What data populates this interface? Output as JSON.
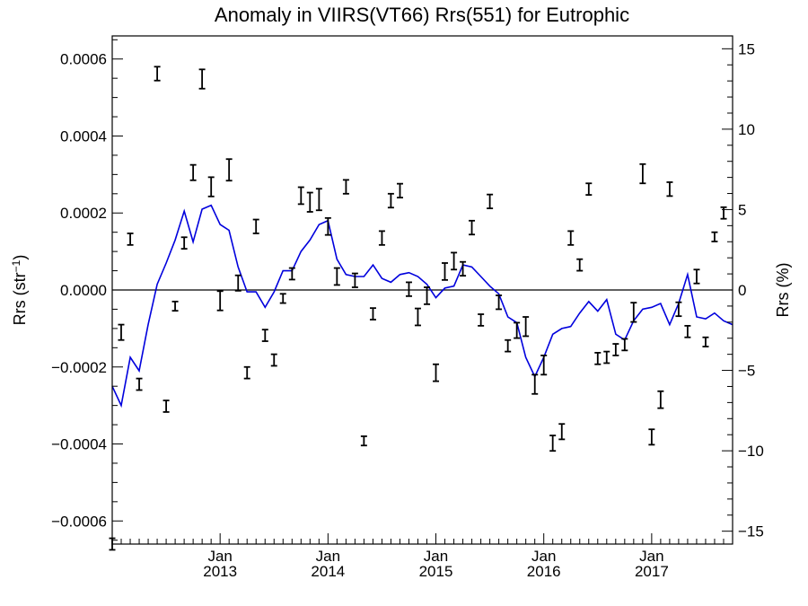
{
  "chart_data": {
    "type": "line",
    "title": "Anomaly in VIIRS(VT66) Rrs(551) for Eutrophic",
    "ylabel": "Rrs (str",
    "ylabel_sup": "−1",
    "ylabel_close": ")",
    "y2label": "Rrs (%)",
    "ylim": [
      -0.00066,
      0.00066
    ],
    "y2lim": [
      -15.8,
      15.8
    ],
    "xlim": [
      2012.0,
      2017.75
    ],
    "grid": false,
    "zero_line": true,
    "line_color": "#0000dd",
    "marker_color": "#000000",
    "y_ticks": [
      {
        "v": -0.0006,
        "label": "−0.0006"
      },
      {
        "v": -0.0004,
        "label": "−0.0004"
      },
      {
        "v": -0.0002,
        "label": "−0.0002"
      },
      {
        "v": 0.0,
        "label": "0.0000"
      },
      {
        "v": 0.0002,
        "label": "0.0002"
      },
      {
        "v": 0.0004,
        "label": "0.0004"
      },
      {
        "v": 0.0006,
        "label": "0.0006"
      }
    ],
    "y2_ticks": [
      {
        "v": -15,
        "label": "−15"
      },
      {
        "v": -10,
        "label": "−10"
      },
      {
        "v": -5,
        "label": "−5"
      },
      {
        "v": 0,
        "label": "0"
      },
      {
        "v": 5,
        "label": "5"
      },
      {
        "v": 10,
        "label": "10"
      },
      {
        "v": 15,
        "label": "15"
      }
    ],
    "x_ticks": [
      {
        "v": 2013.0,
        "month": "Jan",
        "year": "2013"
      },
      {
        "v": 2014.0,
        "month": "Jan",
        "year": "2014"
      },
      {
        "v": 2015.0,
        "month": "Jan",
        "year": "2015"
      },
      {
        "v": 2016.0,
        "month": "Jan",
        "year": "2016"
      },
      {
        "v": 2017.0,
        "month": "Jan",
        "year": "2017"
      }
    ],
    "series": [
      {
        "kind": "line",
        "x": [
          2012.0,
          2012.083,
          2012.167,
          2012.25,
          2012.333,
          2012.417,
          2012.5,
          2012.583,
          2012.667,
          2012.75,
          2012.833,
          2012.917,
          2013.0,
          2013.083,
          2013.167,
          2013.25,
          2013.333,
          2013.417,
          2013.5,
          2013.583,
          2013.667,
          2013.75,
          2013.833,
          2013.917,
          2014.0,
          2014.083,
          2014.167,
          2014.25,
          2014.333,
          2014.417,
          2014.5,
          2014.583,
          2014.667,
          2014.75,
          2014.833,
          2014.917,
          2015.0,
          2015.083,
          2015.167,
          2015.25,
          2015.333,
          2015.417,
          2015.5,
          2015.583,
          2015.667,
          2015.75,
          2015.833,
          2015.917,
          2016.0,
          2016.083,
          2016.167,
          2016.25,
          2016.333,
          2016.417,
          2016.5,
          2016.583,
          2016.667,
          2016.75,
          2016.833,
          2016.917,
          2017.0,
          2017.083,
          2017.167,
          2017.25,
          2017.333,
          2017.417,
          2017.5,
          2017.583,
          2017.667,
          2017.75
        ],
        "y": [
          -0.00025,
          -0.0003,
          -0.000175,
          -0.00021,
          -9e-05,
          1.5e-05,
          7e-05,
          0.00013,
          0.000205,
          0.000125,
          0.00021,
          0.00022,
          0.00017,
          0.000155,
          6e-05,
          -5e-06,
          -5e-06,
          -4.5e-05,
          -5e-06,
          5e-05,
          5e-05,
          0.0001,
          0.00013,
          0.00017,
          0.00018,
          8e-05,
          4e-05,
          3.5e-05,
          3.5e-05,
          6.5e-05,
          3e-05,
          2e-05,
          4e-05,
          4.5e-05,
          3.5e-05,
          1.5e-05,
          -2e-05,
          5e-06,
          1e-05,
          6.5e-05,
          6e-05,
          3.5e-05,
          1e-05,
          -1e-05,
          -7e-05,
          -8.5e-05,
          -0.000175,
          -0.000225,
          -0.000175,
          -0.000115,
          -0.0001,
          -9.5e-05,
          -6e-05,
          -3e-05,
          -5.5e-05,
          -2.5e-05,
          -0.000115,
          -0.00013,
          -8e-05,
          -5e-05,
          -4.5e-05,
          -3.5e-05,
          -9e-05,
          -3.5e-05,
          4e-05,
          -7e-05,
          -7.5e-05,
          -6e-05,
          -8e-05,
          -9e-05
        ]
      },
      {
        "kind": "errorbar",
        "x": [
          2012.0,
          2012.083,
          2012.167,
          2012.25,
          2012.417,
          2012.5,
          2012.583,
          2012.667,
          2012.75,
          2012.833,
          2012.917,
          2013.0,
          2013.083,
          2013.167,
          2013.25,
          2013.333,
          2013.417,
          2013.5,
          2013.583,
          2013.667,
          2013.75,
          2013.833,
          2013.917,
          2014.0,
          2014.083,
          2014.167,
          2014.25,
          2014.333,
          2014.417,
          2014.5,
          2014.583,
          2014.667,
          2014.75,
          2014.833,
          2014.917,
          2015.0,
          2015.083,
          2015.167,
          2015.25,
          2015.333,
          2015.417,
          2015.5,
          2015.583,
          2015.667,
          2015.75,
          2015.833,
          2015.917,
          2016.0,
          2016.083,
          2016.167,
          2016.25,
          2016.333,
          2016.417,
          2016.5,
          2016.583,
          2016.667,
          2016.75,
          2016.833,
          2016.917,
          2017.0,
          2017.083,
          2017.167,
          2017.25,
          2017.333,
          2017.417,
          2017.5,
          2017.583,
          2017.667
        ],
        "y": [
          -0.00066,
          -0.00011,
          0.000132,
          -0.000245,
          0.000562,
          -0.000302,
          -4.2e-05,
          0.000122,
          0.000305,
          0.000548,
          0.000268,
          -2.8e-05,
          0.000312,
          1.8e-05,
          -0.000215,
          0.000165,
          -0.000118,
          -0.000182,
          -2.2e-05,
          4.2e-05,
          0.000245,
          0.000228,
          0.000235,
          0.000165,
          3.5e-05,
          0.000268,
          2.5e-05,
          -0.000392,
          -6.2e-05,
          0.000135,
          0.000232,
          0.000258,
          2e-06,
          -7e-05,
          -1.5e-05,
          -0.000215,
          4.8e-05,
          7.5e-05,
          5.5e-05,
          0.000162,
          -7.8e-05,
          0.00023,
          -3.2e-05,
          -0.000145,
          -0.000105,
          -9.5e-05,
          -0.000245,
          -0.000195,
          -0.000398,
          -0.000368,
          0.000135,
          6.5e-05,
          0.000262,
          -0.000178,
          -0.000175,
          -0.000155,
          -0.000142,
          -5.8e-05,
          0.000302,
          -0.000382,
          -0.000285,
          0.000262,
          -5e-05,
          -0.000108,
          3.5e-05,
          -0.000135,
          0.000138,
          0.0002
        ],
        "err": [
          1.5e-05,
          2e-05,
          1.5e-05,
          1.5e-05,
          1.8e-05,
          1.5e-05,
          1.2e-05,
          1.5e-05,
          2e-05,
          2.5e-05,
          2.5e-05,
          2.5e-05,
          2.8e-05,
          2e-05,
          1.5e-05,
          1.8e-05,
          1.5e-05,
          1.5e-05,
          1.2e-05,
          1.5e-05,
          2.2e-05,
          2.5e-05,
          2.8e-05,
          2.2e-05,
          2.2e-05,
          1.8e-05,
          1.8e-05,
          1.2e-05,
          1.5e-05,
          1.8e-05,
          1.8e-05,
          1.8e-05,
          1.8e-05,
          2.2e-05,
          2.2e-05,
          2.2e-05,
          2.2e-05,
          2.2e-05,
          1.8e-05,
          1.8e-05,
          1.5e-05,
          1.8e-05,
          1.8e-05,
          1.5e-05,
          2e-05,
          2.5e-05,
          2.5e-05,
          2.5e-05,
          2e-05,
          2e-05,
          1.8e-05,
          1.5e-05,
          1.5e-05,
          1.5e-05,
          1.5e-05,
          1.5e-05,
          1.5e-05,
          2.5e-05,
          2.5e-05,
          2e-05,
          2.2e-05,
          1.8e-05,
          1.8e-05,
          1.5e-05,
          1.8e-05,
          1.2e-05,
          1.2e-05,
          1.5e-05
        ]
      }
    ]
  }
}
